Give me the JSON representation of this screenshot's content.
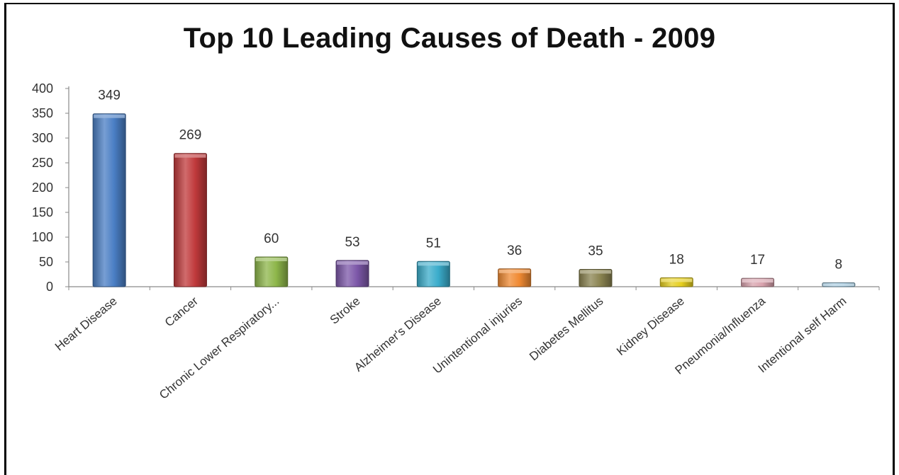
{
  "chart_data": {
    "type": "bar",
    "title": "Top 10 Leading Causes of Death - 2009",
    "xlabel": "",
    "ylabel": "",
    "ylim": [
      0,
      400
    ],
    "yticks": [
      0,
      50,
      100,
      150,
      200,
      250,
      300,
      350,
      400
    ],
    "grid": false,
    "legend": "none",
    "categories": [
      "Heart Disease",
      "Cancer",
      "Chronic Lower Respiratory...",
      "Stroke",
      "Alzheimer's Disease",
      "Unintentional injuries",
      "Diabetes Mellitus",
      "Kidney Disease",
      "Pneumonia/Influenza",
      "Intentional self Harm"
    ],
    "values": [
      349,
      269,
      60,
      53,
      51,
      36,
      35,
      18,
      17,
      8
    ],
    "colors": [
      "#4a7ec4",
      "#c0393b",
      "#8db64a",
      "#7c57a8",
      "#3aaccb",
      "#f08a32",
      "#8a8350",
      "#e6cf1e",
      "#d9a3ae",
      "#9ec6dc"
    ]
  }
}
